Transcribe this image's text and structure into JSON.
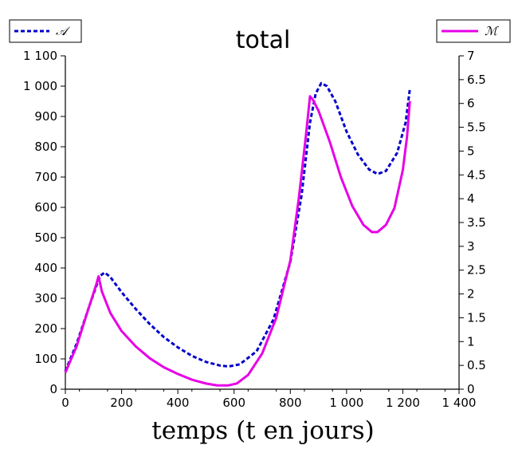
{
  "chart_data": {
    "type": "line",
    "title": "total",
    "xlabel": "temps (t en jours)",
    "x_range": [
      0,
      1400
    ],
    "y_left_range": [
      0,
      1100
    ],
    "y_right_range": [
      0,
      7
    ],
    "x_ticks": [
      0,
      200,
      400,
      600,
      800,
      1000,
      1200,
      1400
    ],
    "x_tick_labels": [
      "0",
      "200",
      "400",
      "600",
      "800",
      "1 000",
      "1 200",
      "1 400"
    ],
    "y_left_ticks": [
      0,
      100,
      200,
      300,
      400,
      500,
      600,
      700,
      800,
      900,
      1000,
      1100
    ],
    "y_left_tick_labels": [
      "0",
      "100",
      "200",
      "300",
      "400",
      "500",
      "600",
      "700",
      "800",
      "900",
      "1 000",
      "1 100"
    ],
    "y_right_ticks": [
      0,
      0.5,
      1,
      1.5,
      2,
      2.5,
      3,
      3.5,
      4,
      4.5,
      5,
      5.5,
      6,
      6.5,
      7
    ],
    "y_right_tick_labels": [
      "0",
      "0.5",
      "1",
      "1.5",
      "2",
      "2.5",
      "3",
      "3.5",
      "4",
      "4.5",
      "5",
      "5.5",
      "6",
      "6.5",
      "7"
    ],
    "grid": false,
    "series": [
      {
        "name": "𝒜",
        "axis": "left",
        "color": "#0000cc",
        "dash": "dashed",
        "legend_position": "top-left",
        "points": [
          [
            0,
            60
          ],
          [
            40,
            150
          ],
          [
            80,
            260
          ],
          [
            110,
            340
          ],
          [
            125,
            375
          ],
          [
            140,
            385
          ],
          [
            160,
            370
          ],
          [
            200,
            320
          ],
          [
            250,
            265
          ],
          [
            300,
            215
          ],
          [
            350,
            172
          ],
          [
            400,
            138
          ],
          [
            450,
            110
          ],
          [
            500,
            90
          ],
          [
            550,
            78
          ],
          [
            580,
            75
          ],
          [
            620,
            82
          ],
          [
            680,
            125
          ],
          [
            740,
            230
          ],
          [
            800,
            420
          ],
          [
            840,
            640
          ],
          [
            870,
            880
          ],
          [
            890,
            975
          ],
          [
            910,
            1010
          ],
          [
            930,
            1000
          ],
          [
            960,
            950
          ],
          [
            1000,
            850
          ],
          [
            1040,
            775
          ],
          [
            1080,
            725
          ],
          [
            1110,
            710
          ],
          [
            1140,
            720
          ],
          [
            1180,
            780
          ],
          [
            1210,
            880
          ],
          [
            1225,
            990
          ]
        ]
      },
      {
        "name": "ℳ",
        "axis": "right",
        "color": "#e600e6",
        "dash": "solid",
        "legend_position": "top-right",
        "points": [
          [
            0,
            0.35
          ],
          [
            40,
            0.9
          ],
          [
            80,
            1.65
          ],
          [
            110,
            2.2
          ],
          [
            118,
            2.37
          ],
          [
            130,
            2.05
          ],
          [
            160,
            1.6
          ],
          [
            200,
            1.22
          ],
          [
            250,
            0.9
          ],
          [
            300,
            0.65
          ],
          [
            350,
            0.46
          ],
          [
            400,
            0.32
          ],
          [
            450,
            0.2
          ],
          [
            500,
            0.12
          ],
          [
            540,
            0.08
          ],
          [
            580,
            0.08
          ],
          [
            610,
            0.12
          ],
          [
            650,
            0.3
          ],
          [
            700,
            0.75
          ],
          [
            750,
            1.5
          ],
          [
            800,
            2.7
          ],
          [
            830,
            4.0
          ],
          [
            855,
            5.3
          ],
          [
            870,
            6.15
          ],
          [
            880,
            6.08
          ],
          [
            900,
            5.85
          ],
          [
            940,
            5.2
          ],
          [
            980,
            4.45
          ],
          [
            1020,
            3.85
          ],
          [
            1060,
            3.45
          ],
          [
            1090,
            3.3
          ],
          [
            1110,
            3.3
          ],
          [
            1140,
            3.45
          ],
          [
            1170,
            3.8
          ],
          [
            1200,
            4.6
          ],
          [
            1215,
            5.3
          ],
          [
            1225,
            6.05
          ]
        ]
      }
    ]
  }
}
